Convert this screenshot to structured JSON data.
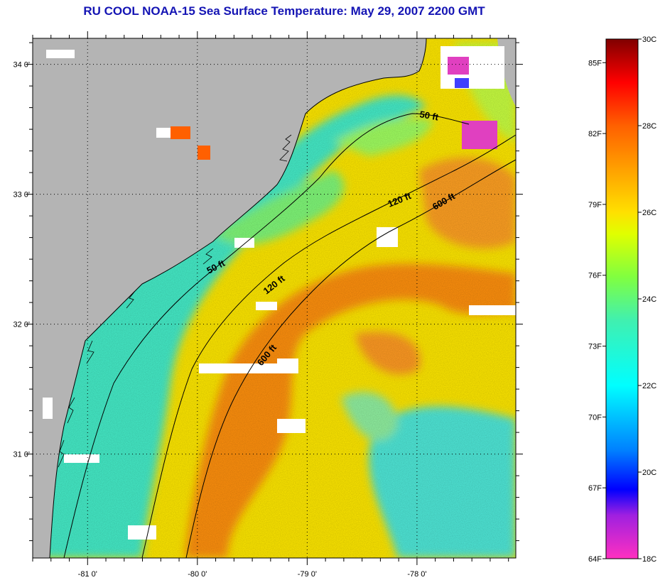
{
  "title": "RU COOL  NOAA-15  Sea Surface Temperature:  May 29, 2007 2200 GMT",
  "map": {
    "lon_range": [
      -81.5,
      -77.1
    ],
    "lat_range": [
      30.2,
      34.2
    ],
    "x_ticks": [
      {
        "value": -81,
        "label": "-81 0'"
      },
      {
        "value": -80,
        "label": "-80 0'"
      },
      {
        "value": -79,
        "label": "-79 0'"
      },
      {
        "value": -78,
        "label": "-78 0'"
      }
    ],
    "y_ticks": [
      {
        "value": 34,
        "label": "34 0'"
      },
      {
        "value": 33,
        "label": "33 0'"
      },
      {
        "value": 32,
        "label": "32 0'"
      },
      {
        "value": 31,
        "label": "31 0'"
      }
    ],
    "grid": "dotted",
    "colors": {
      "land": "#b4b4b4",
      "cloud": "#ffffff",
      "shelf_cool": "#40f0c0",
      "mid_shelf": "#80ff60",
      "warm": "#ffe000",
      "gulf_stream": "#ff8000",
      "offshore_cool": "#40e0e0"
    },
    "contours": [
      {
        "label": "50 ft"
      },
      {
        "label": "50 ft"
      },
      {
        "label": "120 ft"
      },
      {
        "label": "120 ft"
      },
      {
        "label": "600 ft"
      },
      {
        "label": "600 ft"
      }
    ]
  },
  "colorbar": {
    "celsius_range": [
      18,
      30
    ],
    "fahrenheit_range": [
      64,
      86
    ],
    "fahrenheit_labels": [
      {
        "value": 85,
        "label": "85F"
      },
      {
        "value": 82,
        "label": "82F"
      },
      {
        "value": 79,
        "label": "79F"
      },
      {
        "value": 76,
        "label": "76F"
      },
      {
        "value": 73,
        "label": "73F"
      },
      {
        "value": 70,
        "label": "70F"
      },
      {
        "value": 67,
        "label": "67F"
      },
      {
        "value": 64,
        "label": "64F"
      }
    ],
    "celsius_labels": [
      {
        "value": 30,
        "label": "30C"
      },
      {
        "value": 28,
        "label": "28C"
      },
      {
        "value": 26,
        "label": "26C"
      },
      {
        "value": 24,
        "label": "24C"
      },
      {
        "value": 22,
        "label": "22C"
      },
      {
        "value": 20,
        "label": "20C"
      },
      {
        "value": 18,
        "label": "18C"
      }
    ],
    "color_stops": [
      {
        "c": 18.0,
        "color": "#ff30c0"
      },
      {
        "c": 19.0,
        "color": "#a020e0"
      },
      {
        "c": 19.6,
        "color": "#0000ff"
      },
      {
        "c": 20.5,
        "color": "#0080ff"
      },
      {
        "c": 22.0,
        "color": "#00ffff"
      },
      {
        "c": 23.5,
        "color": "#40f0b0"
      },
      {
        "c": 24.5,
        "color": "#80ff40"
      },
      {
        "c": 25.5,
        "color": "#e0ff00"
      },
      {
        "c": 26.0,
        "color": "#ffe000"
      },
      {
        "c": 27.0,
        "color": "#ffa000"
      },
      {
        "c": 28.0,
        "color": "#ff6000"
      },
      {
        "c": 29.0,
        "color": "#ff0000"
      },
      {
        "c": 30.0,
        "color": "#800000"
      }
    ]
  }
}
